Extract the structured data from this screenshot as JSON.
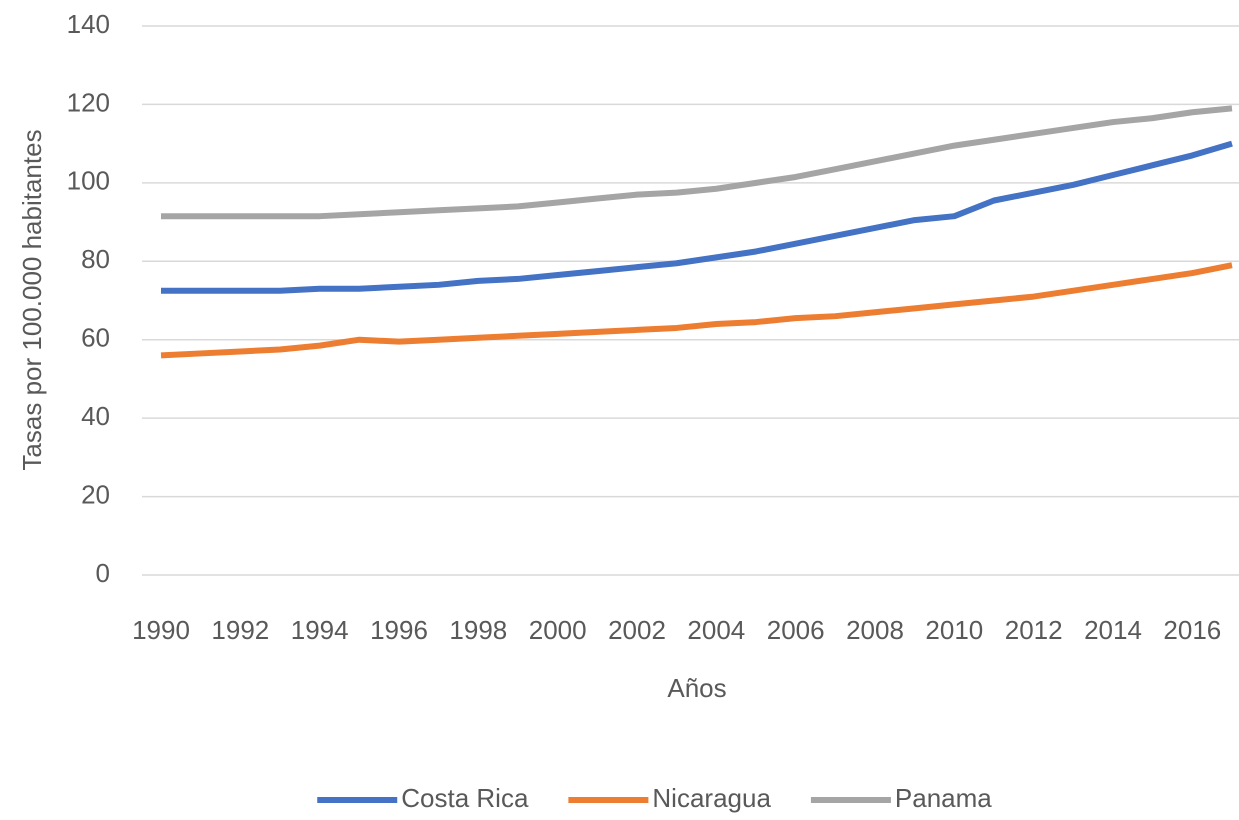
{
  "chart_data": {
    "type": "line",
    "y_label": "Tasas por 100.000 habitantes",
    "x_label": "Años",
    "x": [
      1990,
      1991,
      1992,
      1993,
      1994,
      1995,
      1996,
      1997,
      1998,
      1999,
      2000,
      2001,
      2002,
      2003,
      2004,
      2005,
      2006,
      2007,
      2008,
      2009,
      2010,
      2011,
      2012,
      2013,
      2014,
      2015,
      2016,
      2017
    ],
    "xlim": [
      1990,
      2017
    ],
    "xticks": [
      1990,
      1992,
      1994,
      1996,
      1998,
      2000,
      2002,
      2004,
      2006,
      2008,
      2010,
      2012,
      2014,
      2016
    ],
    "ylim": [
      0,
      140
    ],
    "yticks": [
      0,
      20,
      40,
      60,
      80,
      100,
      120,
      140
    ],
    "grid": true,
    "legend": "bottom",
    "series": [
      {
        "name": "Costa Rica",
        "color": "#4472c4",
        "values": [
          72.5,
          72.5,
          72.5,
          72.5,
          73,
          73,
          73.5,
          74,
          75,
          75.5,
          76.5,
          77.5,
          78.5,
          79.5,
          81,
          82.5,
          84.5,
          86.5,
          88.5,
          90.5,
          91.5,
          95.5,
          97.5,
          99.5,
          102,
          104.5,
          107,
          110
        ]
      },
      {
        "name": "Nicaragua",
        "color": "#ed7d31",
        "values": [
          56,
          56.5,
          57,
          57.5,
          58.5,
          60,
          59.5,
          60,
          60.5,
          61,
          61.5,
          62,
          62.5,
          63,
          64,
          64.5,
          65.5,
          66,
          67,
          68,
          69,
          70,
          71,
          72.5,
          74,
          75.5,
          77,
          79
        ]
      },
      {
        "name": "Panama",
        "color": "#a5a5a5",
        "values": [
          91.5,
          91.5,
          91.5,
          91.5,
          91.5,
          92,
          92.5,
          93,
          93.5,
          94,
          95,
          96,
          97,
          97.5,
          98.5,
          100,
          101.5,
          103.5,
          105.5,
          107.5,
          109.5,
          111,
          112.5,
          114,
          115.5,
          116.5,
          118,
          119
        ]
      }
    ]
  }
}
